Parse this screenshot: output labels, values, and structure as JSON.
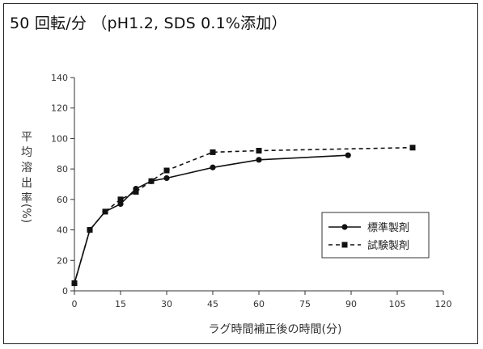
{
  "chart_data": {
    "type": "line",
    "title": "50 回転/分 （pH1.2, SDS 0.1%添加）",
    "xlabel": "ラグ時間補正後の時間(分)",
    "ylabel": "平均溶出率(%)",
    "ylabel_chars": [
      "平",
      "均",
      "溶",
      "出",
      "率",
      "(%)"
    ],
    "xlim": [
      0,
      120
    ],
    "ylim": [
      0,
      140
    ],
    "x_ticks": [
      0,
      15,
      30,
      45,
      60,
      75,
      90,
      105,
      120
    ],
    "y_ticks": [
      0,
      20,
      40,
      60,
      80,
      100,
      120,
      140
    ],
    "x_tick_labels": [
      "0",
      "15",
      "30",
      "45",
      "60",
      "75",
      "90",
      "105",
      "120"
    ],
    "y_tick_labels": [
      "0",
      "20",
      "40",
      "60",
      "80",
      "100",
      "120",
      "140"
    ],
    "grid": false,
    "legend_position": "bottom-right",
    "series": [
      {
        "name": "標準製剤",
        "marker": "circle",
        "line_style": "solid",
        "color": "#111111",
        "x": [
          0,
          5,
          10,
          15,
          20,
          25,
          30,
          45,
          60,
          89
        ],
        "y": [
          5,
          40,
          52,
          57,
          67,
          72,
          74,
          81,
          86,
          89
        ]
      },
      {
        "name": "試験製剤",
        "marker": "square",
        "line_style": "dashed",
        "color": "#111111",
        "x": [
          0,
          5,
          10,
          15,
          20,
          25,
          30,
          45,
          60,
          110
        ],
        "y": [
          5,
          40,
          52,
          60,
          65,
          72,
          79,
          91,
          92,
          94
        ]
      }
    ]
  }
}
